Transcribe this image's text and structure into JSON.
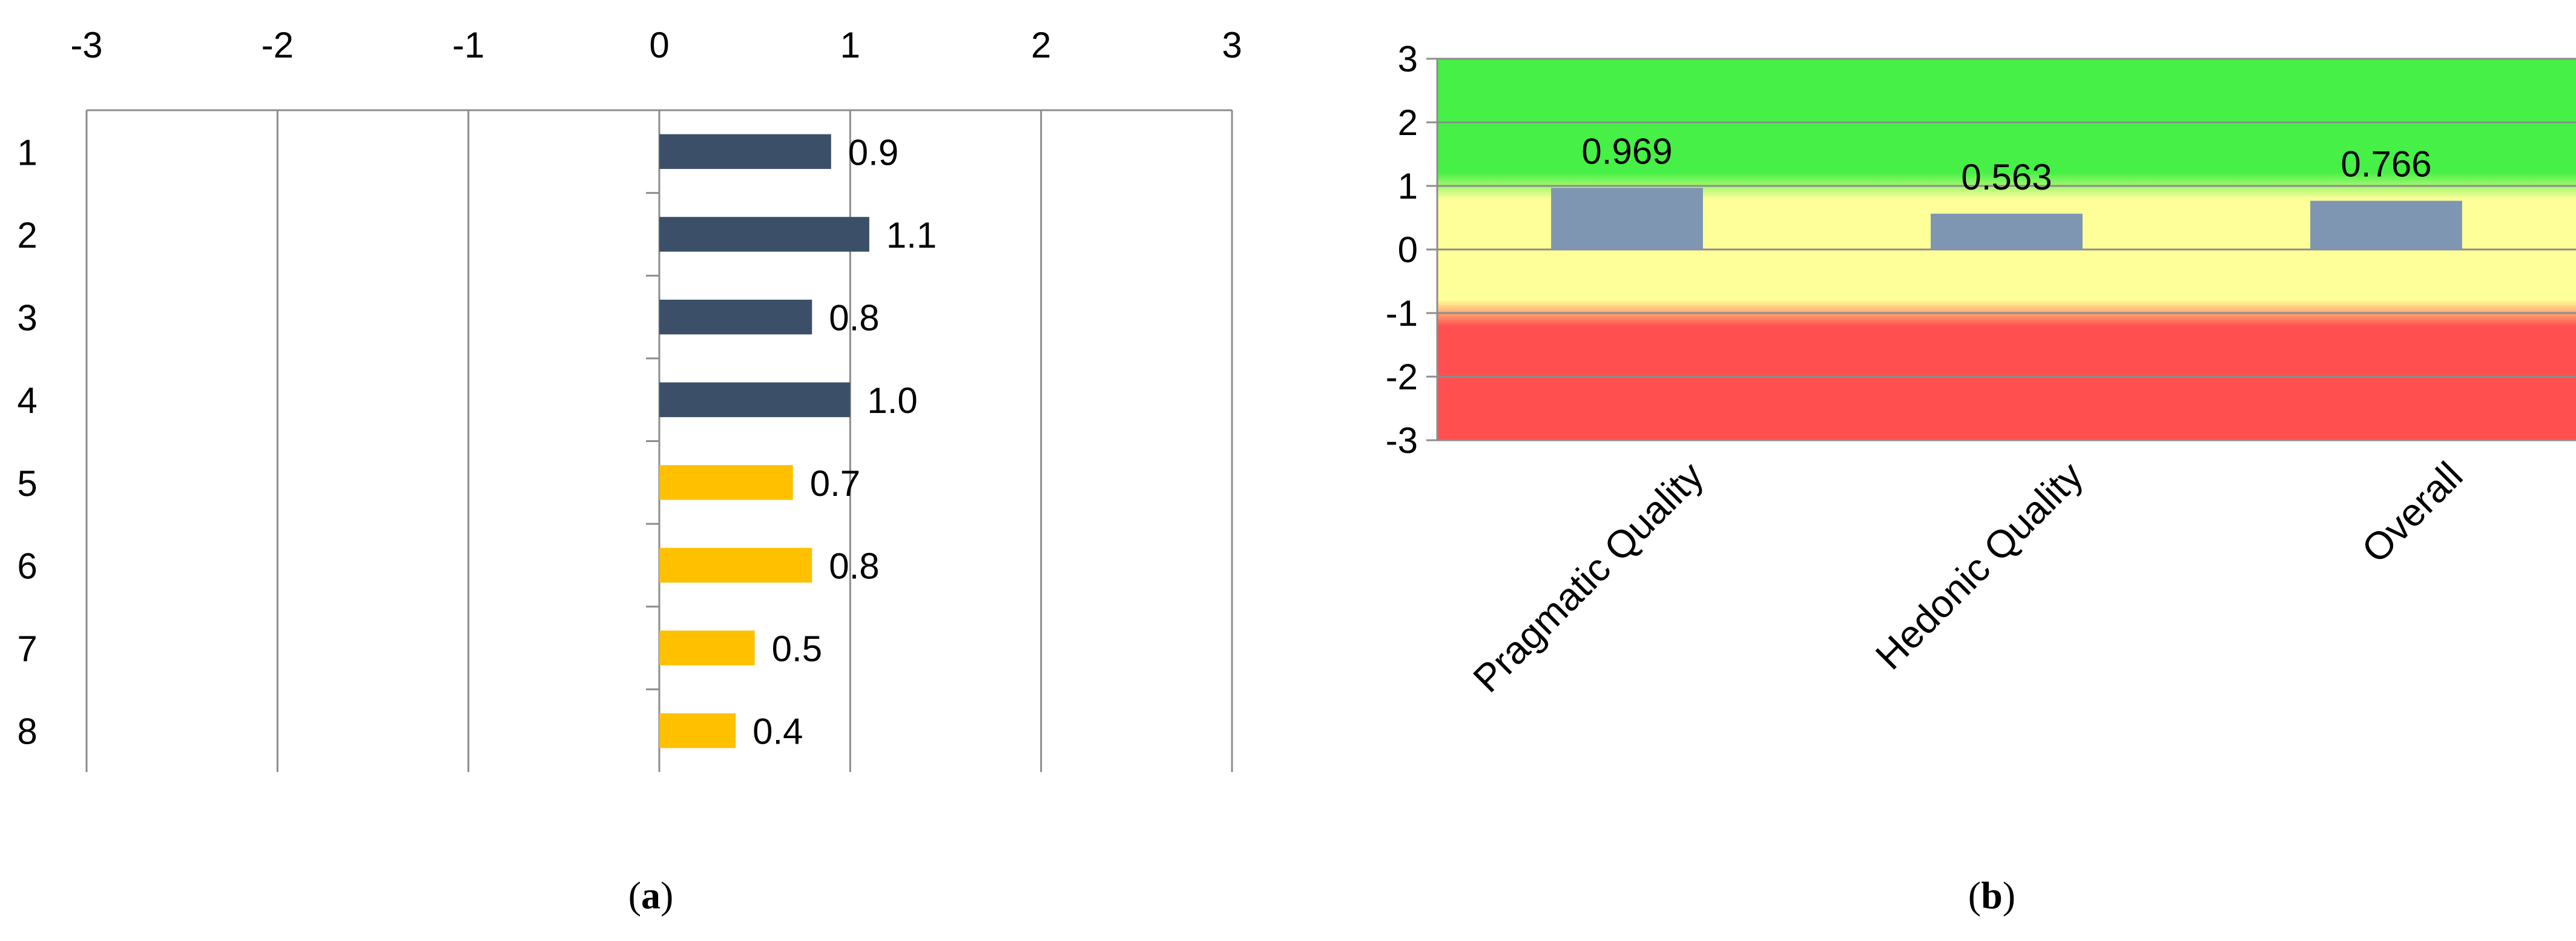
{
  "chart_data": [
    {
      "id": "a",
      "type": "bar",
      "orientation": "horizontal",
      "caption_letter": "a",
      "xlim": [
        -3,
        3
      ],
      "xticks": [
        "-3",
        "-2",
        "-1",
        "0",
        "1",
        "2",
        "3"
      ],
      "categories": [
        "1",
        "2",
        "3",
        "4",
        "5",
        "6",
        "7",
        "8"
      ],
      "values": [
        0.9,
        1.1,
        0.8,
        1.0,
        0.7,
        0.8,
        0.5,
        0.4
      ],
      "value_labels": [
        "0.9",
        "1.1",
        "0.8",
        "1.0",
        "0.7",
        "0.8",
        "0.5",
        "0.4"
      ],
      "bar_colors": [
        "#3b5068",
        "#3b5068",
        "#3b5068",
        "#3b5068",
        "#ffc000",
        "#ffc000",
        "#ffc000",
        "#ffc000"
      ],
      "grid": true,
      "legend": false
    },
    {
      "id": "b",
      "type": "bar",
      "orientation": "vertical",
      "caption_letter": "b",
      "ylim": [
        -3,
        3
      ],
      "yticks": [
        "3",
        "2",
        "1",
        "0",
        "-1",
        "-2",
        "-3"
      ],
      "categories": [
        "Pragmatic Quality",
        "Hedonic Quality",
        "Overall"
      ],
      "values": [
        0.969,
        0.563,
        0.766
      ],
      "value_labels": [
        "0.969",
        "0.563",
        "0.766"
      ],
      "bar_color": "#7f96b2",
      "background_bands": [
        {
          "from": 1,
          "to": 3,
          "color": "#46f046"
        },
        {
          "from": -1,
          "to": 1,
          "color": "#ffff99"
        },
        {
          "from": -3,
          "to": -1,
          "color": "#ff4f4f"
        }
      ],
      "grid": true,
      "legend": false
    }
  ]
}
